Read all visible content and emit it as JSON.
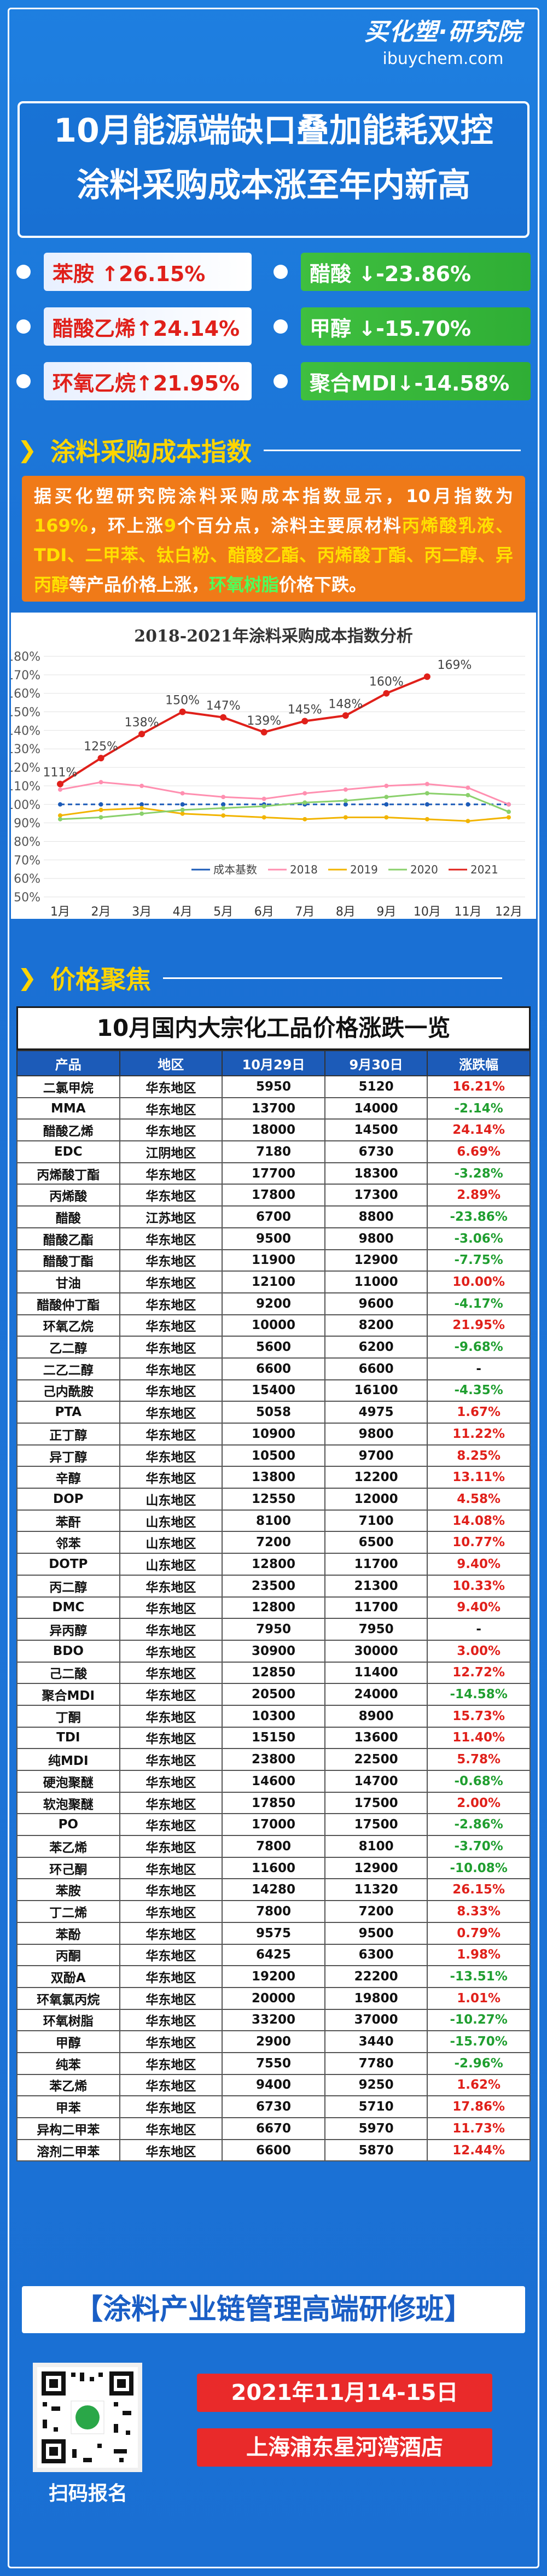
{
  "brand": {
    "logo": "买化塑·研究院",
    "url": "ibuychem.com"
  },
  "title": {
    "line1": "10月能源端缺口叠加能耗双控",
    "line2": "涂料采购成本涨至年内新高"
  },
  "chips": [
    {
      "text": "苯胺 ↑26.15%",
      "dir": "up"
    },
    {
      "text": "醋酸 ↓-23.86%",
      "dir": "down"
    },
    {
      "text": "醋酸乙烯↑24.14%",
      "dir": "up"
    },
    {
      "text": "甲醇 ↓-15.70%",
      "dir": "down"
    },
    {
      "text": "环氧乙烷↑21.95%",
      "dir": "up"
    },
    {
      "text": "聚合MDI↓-14.58%",
      "dir": "down"
    }
  ],
  "section1": "涂料采购成本指数",
  "section2": "价格聚焦",
  "intro": {
    "p1": "据买化塑研究院涂料采购成本指数显示，10月指数为",
    "p2": "169%",
    "p3": "，环上涨",
    "p4": "9",
    "p5": "个百分点，涂料主要原材料",
    "p6": "丙烯酸乳液、TDI、二甲苯、钛白粉、醋酸乙酯、丙烯酸丁酯、丙二醇、异丙醇",
    "p7": "等产品价格上涨，",
    "p8": "环氧树脂",
    "p9": "价格下跌。"
  },
  "chart_data": {
    "type": "line",
    "title": "2018-2021年涂料采购成本指数分析",
    "categories": [
      "1月",
      "2月",
      "3月",
      "4月",
      "5月",
      "6月",
      "7月",
      "8月",
      "9月",
      "10月",
      "11月",
      "12月"
    ],
    "ylim": [
      50,
      180
    ],
    "yticks": [
      "180%",
      "170%",
      "160%",
      "150%",
      "140%",
      "130%",
      "120%",
      "110%",
      "100%",
      "90%",
      "80%",
      "70%",
      "60%",
      "50%"
    ],
    "legend": [
      "成本基数",
      "2018",
      "2019",
      "2020",
      "2021"
    ],
    "series": [
      {
        "name": "成本基数",
        "color": "#1c5bb8",
        "values": [
          100,
          100,
          100,
          100,
          100,
          100,
          100,
          100,
          100,
          100,
          100,
          100
        ]
      },
      {
        "name": "2018",
        "color": "#ff8fb0",
        "values": [
          108,
          112,
          110,
          106,
          104,
          103,
          106,
          108,
          110,
          111,
          109,
          100
        ]
      },
      {
        "name": "2019",
        "color": "#f2b400",
        "values": [
          94,
          97,
          98,
          95,
          94,
          93,
          92,
          93,
          93,
          92,
          91,
          93
        ]
      },
      {
        "name": "2020",
        "color": "#8ad06b",
        "values": [
          92,
          93,
          95,
          97,
          98,
          99,
          101,
          102,
          104,
          106,
          105,
          96
        ]
      },
      {
        "name": "2021",
        "color": "#e0201a",
        "values": [
          111,
          125,
          138,
          150,
          147,
          139,
          145,
          148,
          160,
          169,
          null,
          null
        ]
      }
    ],
    "labels_2021": [
      "111%",
      "125%",
      "138%",
      "150%",
      "147%",
      "139%",
      "145%",
      "148%",
      "160%",
      "169%"
    ]
  },
  "table": {
    "title": "10月国内大宗化工品价格涨跌一览",
    "headers": [
      "产品",
      "地区",
      "10月29日",
      "9月30日",
      "涨跌幅"
    ],
    "rows": [
      [
        "二氯甲烷",
        "华东地区",
        "5950",
        "5120",
        "16.21%"
      ],
      [
        "MMA",
        "华东地区",
        "13700",
        "14000",
        "-2.14%"
      ],
      [
        "醋酸乙烯",
        "华东地区",
        "18000",
        "14500",
        "24.14%"
      ],
      [
        "EDC",
        "江阴地区",
        "7180",
        "6730",
        "6.69%"
      ],
      [
        "丙烯酸丁酯",
        "华东地区",
        "17700",
        "18300",
        "-3.28%"
      ],
      [
        "丙烯酸",
        "华东地区",
        "17800",
        "17300",
        "2.89%"
      ],
      [
        "醋酸",
        "江苏地区",
        "6700",
        "8800",
        "-23.86%"
      ],
      [
        "醋酸乙酯",
        "华东地区",
        "9500",
        "9800",
        "-3.06%"
      ],
      [
        "醋酸丁酯",
        "华东地区",
        "11900",
        "12900",
        "-7.75%"
      ],
      [
        "甘油",
        "华东地区",
        "12100",
        "11000",
        "10.00%"
      ],
      [
        "醋酸仲丁酯",
        "华东地区",
        "9200",
        "9600",
        "-4.17%"
      ],
      [
        "环氧乙烷",
        "华东地区",
        "10000",
        "8200",
        "21.95%"
      ],
      [
        "乙二醇",
        "华东地区",
        "5600",
        "6200",
        "-9.68%"
      ],
      [
        "二乙二醇",
        "华东地区",
        "6600",
        "6600",
        "-"
      ],
      [
        "己内酰胺",
        "华东地区",
        "15400",
        "16100",
        "-4.35%"
      ],
      [
        "PTA",
        "华东地区",
        "5058",
        "4975",
        "1.67%"
      ],
      [
        "正丁醇",
        "华东地区",
        "10900",
        "9800",
        "11.22%"
      ],
      [
        "异丁醇",
        "华东地区",
        "10500",
        "9700",
        "8.25%"
      ],
      [
        "辛醇",
        "华东地区",
        "13800",
        "12200",
        "13.11%"
      ],
      [
        "DOP",
        "山东地区",
        "12550",
        "12000",
        "4.58%"
      ],
      [
        "苯酐",
        "山东地区",
        "8100",
        "7100",
        "14.08%"
      ],
      [
        "邻苯",
        "山东地区",
        "7200",
        "6500",
        "10.77%"
      ],
      [
        "DOTP",
        "山东地区",
        "12800",
        "11700",
        "9.40%"
      ],
      [
        "丙二醇",
        "华东地区",
        "23500",
        "21300",
        "10.33%"
      ],
      [
        "DMC",
        "华东地区",
        "12800",
        "11700",
        "9.40%"
      ],
      [
        "异丙醇",
        "华东地区",
        "7950",
        "7950",
        "-"
      ],
      [
        "BDO",
        "华东地区",
        "30900",
        "30000",
        "3.00%"
      ],
      [
        "己二酸",
        "华东地区",
        "12850",
        "11400",
        "12.72%"
      ],
      [
        "聚合MDI",
        "华东地区",
        "20500",
        "24000",
        "-14.58%"
      ],
      [
        "丁酮",
        "华东地区",
        "10300",
        "8900",
        "15.73%"
      ],
      [
        "TDI",
        "华东地区",
        "15150",
        "13600",
        "11.40%"
      ],
      [
        "纯MDI",
        "华东地区",
        "23800",
        "22500",
        "5.78%"
      ],
      [
        "硬泡聚醚",
        "华东地区",
        "14600",
        "14700",
        "-0.68%"
      ],
      [
        "软泡聚醚",
        "华东地区",
        "17850",
        "17500",
        "2.00%"
      ],
      [
        "PO",
        "华东地区",
        "17000",
        "17500",
        "-2.86%"
      ],
      [
        "苯乙烯",
        "华东地区",
        "7800",
        "8100",
        "-3.70%"
      ],
      [
        "环己酮",
        "华东地区",
        "11600",
        "12900",
        "-10.08%"
      ],
      [
        "苯胺",
        "华东地区",
        "14280",
        "11320",
        "26.15%"
      ],
      [
        "丁二烯",
        "华东地区",
        "7800",
        "7200",
        "8.33%"
      ],
      [
        "苯酚",
        "华东地区",
        "9575",
        "9500",
        "0.79%"
      ],
      [
        "丙酮",
        "华东地区",
        "6425",
        "6300",
        "1.98%"
      ],
      [
        "双酚A",
        "华东地区",
        "19200",
        "22200",
        "-13.51%"
      ],
      [
        "环氧氯丙烷",
        "华东地区",
        "20000",
        "19800",
        "1.01%"
      ],
      [
        "环氧树脂",
        "华东地区",
        "33200",
        "37000",
        "-10.27%"
      ],
      [
        "甲醇",
        "华东地区",
        "2900",
        "3440",
        "-15.70%"
      ],
      [
        "纯苯",
        "华东地区",
        "7550",
        "7780",
        "-2.96%"
      ],
      [
        "苯乙烯",
        "华东地区",
        "9400",
        "9250",
        "1.62%"
      ],
      [
        "甲苯",
        "华东地区",
        "6730",
        "5710",
        "17.86%"
      ],
      [
        "异构二甲苯",
        "华东地区",
        "6670",
        "5970",
        "11.73%"
      ],
      [
        "溶剂二甲苯",
        "华东地区",
        "6600",
        "5870",
        "12.44%"
      ]
    ]
  },
  "banner": "【涂料产业链管理高端研修班】",
  "qr": {
    "label": "扫码报名"
  },
  "event": {
    "date": "2021年11月14-15日",
    "venue": "上海浦东星河湾酒店"
  }
}
